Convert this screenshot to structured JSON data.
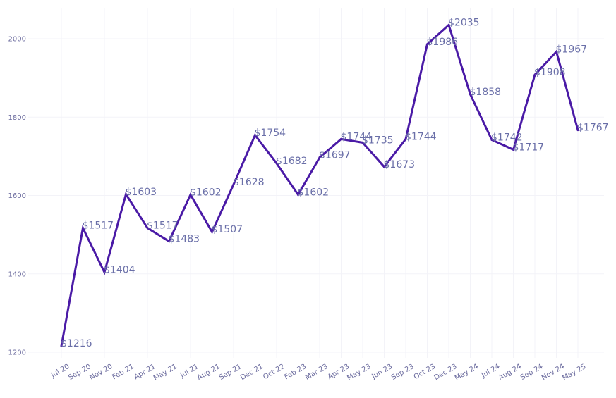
{
  "chart_data": {
    "type": "line",
    "title": "",
    "xlabel": "",
    "ylabel": "",
    "ylim": [
      1200,
      2000
    ],
    "yticks": [
      1200,
      1400,
      1600,
      1800,
      2000
    ],
    "grid": true,
    "legend": "none",
    "series_color": "#4a1aa6",
    "categories": [
      "Jul 20",
      "Sep 20",
      "Nov 20",
      "Feb 21",
      "Apr 21",
      "May 21",
      "Jul 21",
      "Aug 21",
      "Sep 21",
      "Dec 21",
      "Oct 22",
      "Feb 23",
      "Mar 23",
      "Apr 23",
      "May 23",
      "Jun 23",
      "Sep 23",
      "Oct 23",
      "Dec 23",
      "May 24",
      "Jul 24",
      "Aug 24",
      "Sep 24",
      "Nov 24",
      "May 25"
    ],
    "values": [
      1216,
      1517,
      1404,
      1603,
      1517,
      1483,
      1602,
      1507,
      1628,
      1754,
      1682,
      1602,
      1697,
      1744,
      1735,
      1673,
      1744,
      1986,
      2035,
      1858,
      1742,
      1717,
      1908,
      1967,
      1767
    ],
    "labels": [
      "$1216",
      "$1517",
      "$1404",
      "$1603",
      "$1517",
      "$1483",
      "$1602",
      "$1507",
      "$1628",
      "$1754",
      "$1682",
      "$1602",
      "$1697",
      "$1744",
      "$1735",
      "$1673",
      "$1744",
      "$1986",
      "$2035",
      "$1858",
      "$1742",
      "$1717",
      "$1908",
      "$1967",
      "$1767"
    ]
  }
}
